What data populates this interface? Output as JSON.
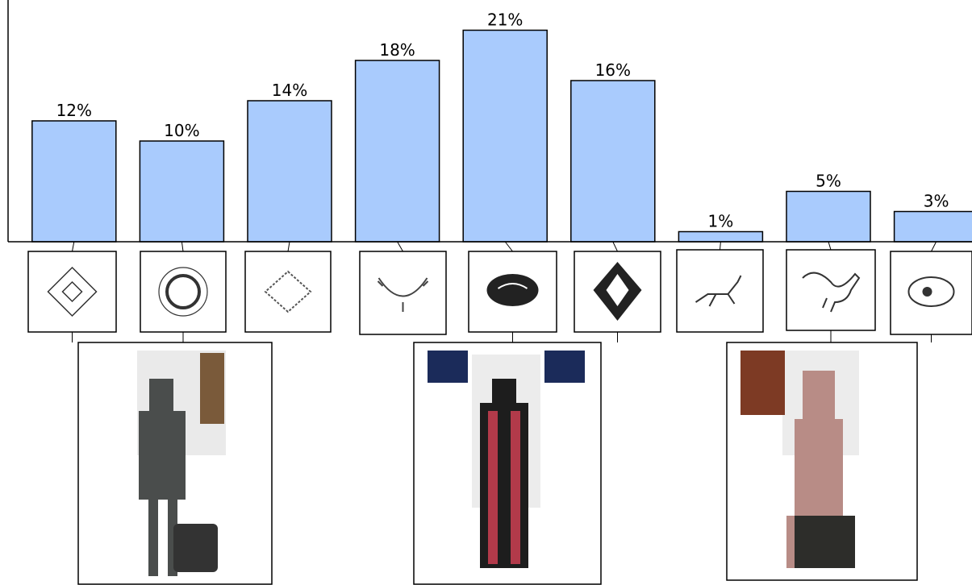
{
  "chart_data": {
    "type": "bar",
    "categories": [
      null,
      null,
      null,
      null,
      null,
      null,
      null,
      null,
      null
    ],
    "values": [
      12,
      10,
      14,
      18,
      21,
      16,
      1,
      5,
      3
    ],
    "value_labels": [
      "12%",
      "10%",
      "14%",
      "18%",
      "21%",
      "16%",
      "1%",
      "5%",
      "3%"
    ],
    "color": "#a9cbfd",
    "ylim": [
      0,
      24
    ]
  }
}
